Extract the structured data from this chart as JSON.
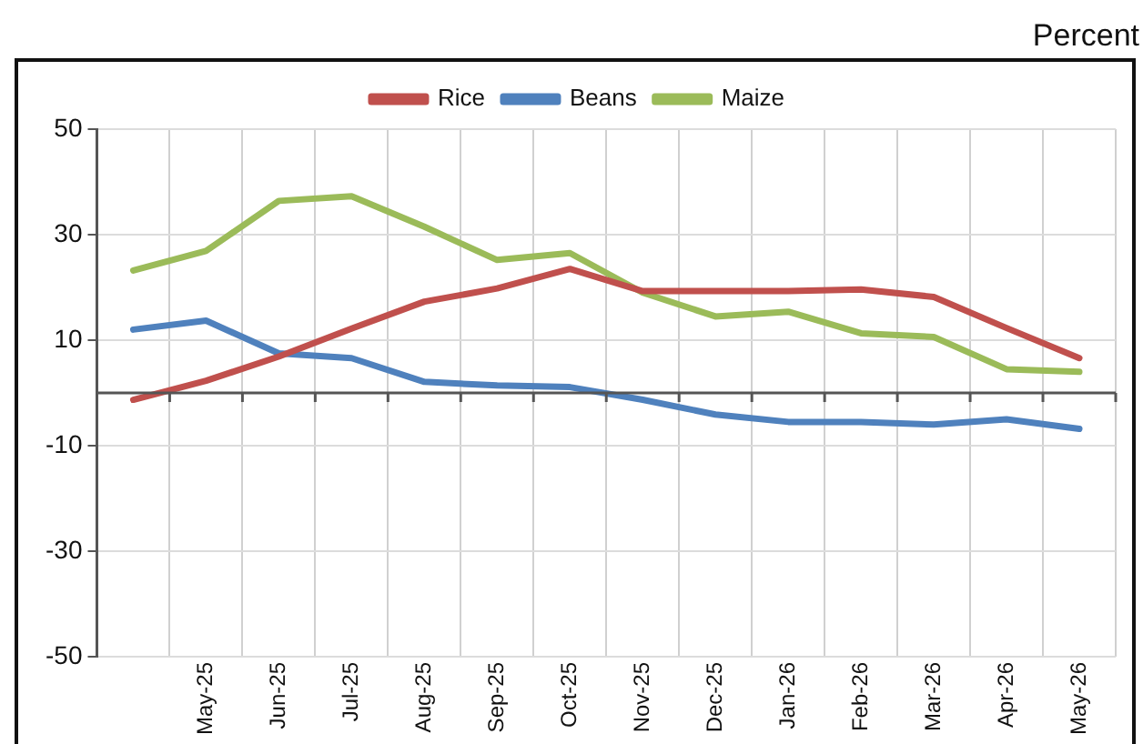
{
  "chart_data": {
    "type": "line",
    "ylabel": "Percent",
    "categories": [
      null,
      "May-25",
      "Jun-25",
      "Jul-25",
      "Aug-25",
      "Sep-25",
      "Oct-25",
      "Nov-25",
      "Dec-25",
      "Jan-26",
      "Feb-26",
      "Mar-26",
      "Apr-26",
      "May-26"
    ],
    "ylim": [
      -50,
      50
    ],
    "yticks": [
      -50,
      -30,
      -10,
      10,
      30,
      50
    ],
    "grid": true,
    "legend": "top",
    "marker": "none",
    "line_style": "solid",
    "series": [
      {
        "name": "Rice",
        "color": "#c0504d",
        "values": [
          -1.3,
          2.3,
          6.9,
          12.2,
          17.3,
          19.8,
          23.5,
          19.3,
          19.3,
          19.3,
          19.6,
          18.2,
          12.3,
          6.6
        ]
      },
      {
        "name": "Beans",
        "color": "#4f81bd",
        "values": [
          12.0,
          13.7,
          7.5,
          6.6,
          2.1,
          1.4,
          1.1,
          -1.3,
          -4.1,
          -5.5,
          -5.5,
          -6.0,
          -5.0,
          -6.8
        ]
      },
      {
        "name": "Maize",
        "color": "#9bbb59",
        "values": [
          23.2,
          26.9,
          36.4,
          37.3,
          31.5,
          25.2,
          26.5,
          19.0,
          14.5,
          15.4,
          11.3,
          10.6,
          4.5,
          4.0
        ]
      }
    ]
  }
}
